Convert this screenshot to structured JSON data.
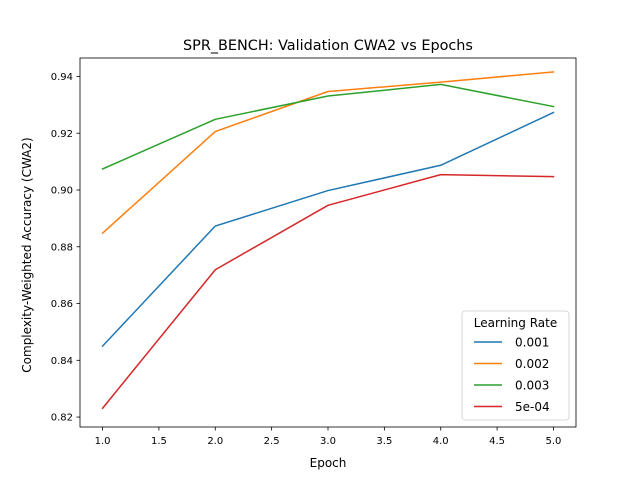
{
  "chart_data": {
    "type": "line",
    "title": "SPR_BENCH: Validation CWA2 vs Epochs",
    "xlabel": "Epoch",
    "ylabel": "Complexity-Weighted Accuracy (CWA2)",
    "xlim": [
      0.8,
      5.2
    ],
    "ylim": [
      0.8165,
      0.9465
    ],
    "x_ticks": [
      1.0,
      1.5,
      2.0,
      2.5,
      3.0,
      3.5,
      4.0,
      4.5,
      5.0
    ],
    "x_tick_labels": [
      "1.0",
      "1.5",
      "2.0",
      "2.5",
      "3.0",
      "3.5",
      "4.0",
      "4.5",
      "5.0"
    ],
    "y_ticks": [
      0.82,
      0.84,
      0.86,
      0.88,
      0.9,
      0.92,
      0.94
    ],
    "y_tick_labels": [
      "0.82",
      "0.84",
      "0.86",
      "0.88",
      "0.90",
      "0.92",
      "0.94"
    ],
    "grid": false,
    "legend": {
      "title": "Learning Rate",
      "position": "lower-right"
    },
    "x": [
      1,
      2,
      3,
      4,
      5
    ],
    "series": [
      {
        "name": "0.001",
        "color": "#1f77b4",
        "values": [
          0.845,
          0.8873,
          0.8998,
          0.9087,
          0.9273
        ]
      },
      {
        "name": "0.002",
        "color": "#ff7f0e",
        "values": [
          0.8848,
          0.9206,
          0.9347,
          0.938,
          0.9416
        ]
      },
      {
        "name": "0.003",
        "color": "#2ca02c",
        "values": [
          0.9074,
          0.9249,
          0.9331,
          0.9372,
          0.9294
        ]
      },
      {
        "name": "5e-04",
        "color": "#d62728",
        "values": [
          0.8231,
          0.8719,
          0.8946,
          0.9054,
          0.9047
        ]
      }
    ]
  }
}
